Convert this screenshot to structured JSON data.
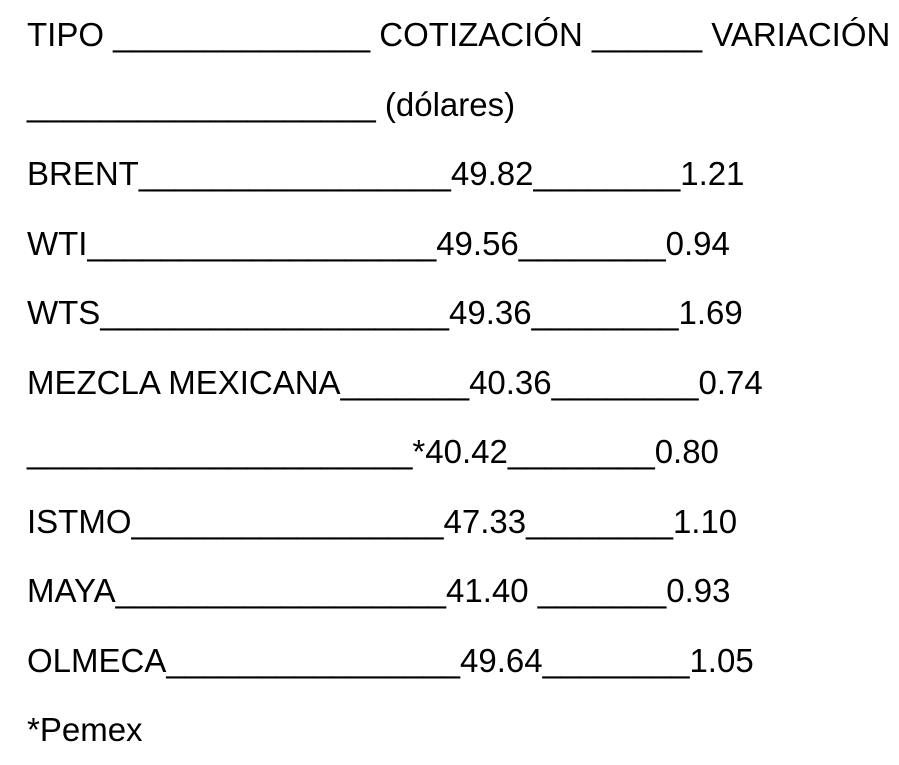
{
  "page": {
    "background": "#ffffff",
    "text_color": "#000000"
  },
  "table": {
    "columns": [
      "TIPO",
      "COTIZACIÓN",
      "VARIACIÓN"
    ],
    "units_label": "(dólares)",
    "footnote": "*Pemex",
    "rows": [
      {
        "tipo": "TIPO",
        "fill_a": " ______________ ",
        "cotizacion": "COTIZACIÓN",
        "fill_b": " ______ ",
        "variacion": "VARIACIÓN"
      },
      {
        "tipo": "",
        "fill_a": "___________________ ",
        "cotizacion": "(dólares)",
        "fill_b": "",
        "variacion": ""
      },
      {
        "tipo": "BRENT",
        "fill_a": "_________________",
        "cotizacion": "49.82",
        "fill_b": "________",
        "variacion": "1.21"
      },
      {
        "tipo": "WTI",
        "fill_a": "___________________",
        "cotizacion": "49.56",
        "fill_b": "________",
        "variacion": "0.94"
      },
      {
        "tipo": "WTS",
        "fill_a": "___________________",
        "cotizacion": "49.36",
        "fill_b": "________",
        "variacion": "1.69"
      },
      {
        "tipo": "MEZCLA MEXICANA",
        "fill_a": "_______",
        "cotizacion": "40.36",
        "fill_b": "________",
        "variacion": "0.74"
      },
      {
        "tipo": "",
        "fill_a": "_____________________",
        "cotizacion": "*40.42",
        "fill_b": "________",
        "variacion": "0.80"
      },
      {
        "tipo": "ISTMO",
        "fill_a": "_________________",
        "cotizacion": "47.33",
        "fill_b": "________",
        "variacion": "1.10"
      },
      {
        "tipo": "MAYA",
        "fill_a": "__________________",
        "cotizacion": "41.40",
        "fill_b": " _______",
        "variacion": "0.93"
      },
      {
        "tipo": "OLMECA",
        "fill_a": "________________",
        "cotizacion": "49.64",
        "fill_b": "________",
        "variacion": "1.05"
      },
      {
        "tipo": "*Pemex",
        "fill_a": "",
        "cotizacion": "",
        "fill_b": "",
        "variacion": ""
      }
    ]
  }
}
